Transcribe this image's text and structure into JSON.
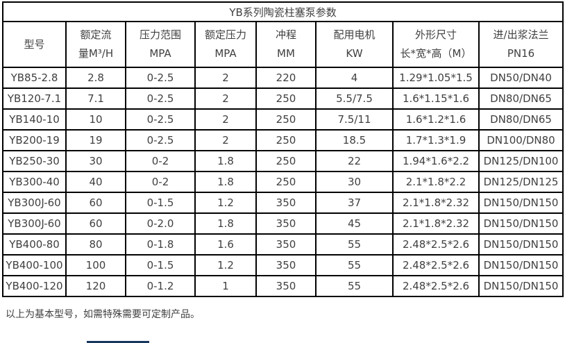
{
  "table": {
    "title": "YB系列陶瓷柱塞泵参数",
    "columns": [
      {
        "line1": "型号",
        "line2": ""
      },
      {
        "line1": "额定流",
        "line2": "量M³/H"
      },
      {
        "line1": "压力范围",
        "line2": "MPA"
      },
      {
        "line1": "额定压力",
        "line2": "MPA"
      },
      {
        "line1": "冲程",
        "line2": "MM"
      },
      {
        "line1": "配用电机",
        "line2": "KW"
      },
      {
        "line1": "外形尺寸",
        "line2": "长*宽*高（M）"
      },
      {
        "line1": "进/出浆法兰",
        "line2": "PN16"
      }
    ],
    "rows": [
      [
        "YB85-2.8",
        "2.8",
        "0-2.5",
        "2",
        "220",
        "4",
        "1.29*1.05*1.5",
        "DN50/DN40"
      ],
      [
        "YB120-7.1",
        "7.1",
        "0-2.5",
        "2",
        "250",
        "5.5/7.5",
        "1.6*1.15*1.6",
        "DN80/DN65"
      ],
      [
        "YB140-10",
        "10",
        "0-2.5",
        "2",
        "250",
        "7.5/11",
        "1.6*1.2*1.6",
        "DN80/DN65"
      ],
      [
        "YB200-19",
        "19",
        "0-2.5",
        "2",
        "250",
        "18.5",
        "1.7*1.3*1.9",
        "DN100/DN80"
      ],
      [
        "YB250-30",
        "30",
        "0-2",
        "1.8",
        "250",
        "22",
        "1.94*1.6*2.2",
        "DN125/DN100"
      ],
      [
        "YB300-40",
        "40",
        "0-2",
        "1.8",
        "250",
        "30",
        "2.1*1.8*2.2",
        "DN125/DN125"
      ],
      [
        "YB300J-60",
        "60",
        "0-1.5",
        "1.2",
        "350",
        "37",
        "2.1*1.8*2.32",
        "DN150/DN150"
      ],
      [
        "YB300J-60",
        "60",
        "0-2.0",
        "1.8",
        "350",
        "45",
        "2.1*1.8*2.32",
        "DN150/DN150"
      ],
      [
        "YB400-80",
        "80",
        "0-1.8",
        "1.6",
        "350",
        "55",
        "2.48*2.5*2.6",
        "DN150/DN150"
      ],
      [
        "YB400-100",
        "100",
        "0-1.5",
        "1.2",
        "350",
        "55",
        "2.48*2.5*2.6",
        "DN150/DN150"
      ],
      [
        "YB400-120",
        "120",
        "0-1.2",
        "1",
        "350",
        "55",
        "2.48*2.5*2.6",
        "DN150/DN150"
      ]
    ]
  },
  "footer": {
    "note": "以上为基本型号，如需特殊需要可定制产品。"
  },
  "colors": {
    "border": "#000000",
    "text": "#404040",
    "accent_bar": "#17375e"
  }
}
